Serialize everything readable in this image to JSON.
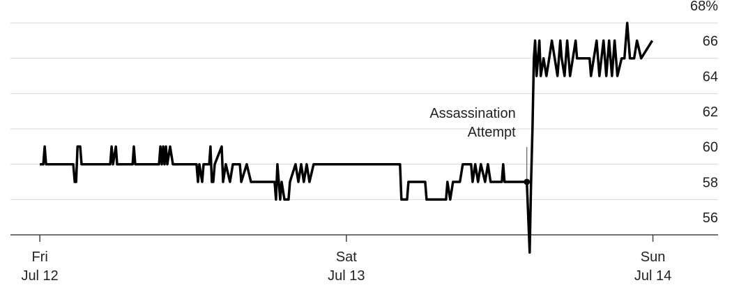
{
  "chart_data": {
    "type": "line",
    "x": [
      0,
      0.27,
      0.38,
      0.49,
      2.62,
      2.73,
      2.84,
      2.95,
      3.16,
      3.27,
      5.51,
      5.62,
      5.73,
      5.95,
      6.05,
      7.26,
      7.36,
      7.47,
      9.33,
      9.44,
      9.55,
      9.66,
      9.76,
      9.87,
      9.98,
      10.2,
      10.42,
      12.27,
      12.38,
      12.49,
      12.71,
      12.82,
      13.26,
      13.36,
      13.47,
      13.58,
      13.69,
      14.24,
      14.35,
      14.56,
      14.89,
      15.11,
      15.66,
      15.77,
      16.2,
      16.53,
      16.75,
      18.38,
      18.49,
      18.6,
      18.82,
      18.93,
      19.15,
      19.47,
      19.58,
      20.02,
      20.24,
      20.46,
      20.67,
      20.89,
      21.11,
      21.44,
      28.2,
      28.31,
      28.75,
      28.86,
      30.17,
      30.28,
      31.8,
      31.91,
      32.13,
      32.35,
      32.89,
      33.11,
      33.77,
      33.88,
      34.09,
      34.31,
      34.53,
      34.86,
      35.08,
      35.29,
      36.17,
      36.28,
      36.38,
      38.13,
      38.35,
      38.46,
      38.57,
      38.68,
      38.78,
      38.89,
      39,
      39.11,
      39.22,
      39.44,
      39.66,
      39.88,
      40.09,
      40.31,
      40.53,
      40.75,
      40.86,
      41.08,
      41.29,
      41.51,
      41.73,
      41.95,
      42.06,
      43.04,
      43.15,
      43.59,
      43.81,
      44.13,
      44.35,
      44.57,
      44.79,
      45,
      45.22,
      45.55,
      45.77,
      45.99,
      46.2,
      46.53,
      46.75,
      47.08,
      47.95
    ],
    "series": [
      {
        "color": "#000000",
        "values": [
          60,
          60,
          61,
          60,
          60,
          59,
          59,
          61,
          61,
          60,
          60,
          61,
          60,
          61,
          60,
          60,
          61,
          60,
          60,
          61,
          60,
          61,
          60,
          61,
          60,
          61,
          60,
          60,
          59,
          60,
          59,
          60,
          60,
          61,
          59,
          59,
          60,
          61,
          59,
          60,
          59,
          60,
          60,
          59,
          60,
          59,
          59,
          59,
          58,
          60,
          58,
          59,
          58,
          58,
          59,
          60,
          59,
          60,
          59,
          60,
          59,
          60,
          60,
          58,
          58,
          59,
          59,
          58,
          58,
          59,
          58,
          59,
          59,
          60,
          60,
          59,
          60,
          59,
          60,
          59,
          60,
          59,
          59,
          60,
          59,
          59,
          55,
          59,
          62,
          66,
          67,
          65,
          66,
          67,
          65,
          66,
          65,
          66,
          67,
          66,
          65,
          67,
          66,
          65,
          67,
          65,
          66,
          67,
          66,
          66,
          65,
          67,
          65,
          67,
          65,
          67,
          65,
          67,
          65,
          66,
          66,
          68,
          66,
          66,
          67,
          66,
          67
        ]
      }
    ],
    "xlim": [
      -2.3,
      53.1
    ],
    "xticks": [
      {
        "value": 0,
        "label": [
          "Fri",
          "Jul 12"
        ]
      },
      {
        "value": 24,
        "label": [
          "Sat",
          "Jul 13"
        ]
      },
      {
        "value": 48,
        "label": [
          "Sun",
          "Jul 14"
        ]
      }
    ],
    "ylim": [
      56,
      68
    ],
    "yticks": [
      56,
      58,
      60,
      62,
      64,
      {
        "value": 66,
        "label": "66"
      },
      {
        "value": 68,
        "label": "68%"
      }
    ],
    "grid": true,
    "annotation": {
      "text": [
        "Assassination",
        "Attempt"
      ],
      "x": 38.13,
      "y": 59
    }
  }
}
